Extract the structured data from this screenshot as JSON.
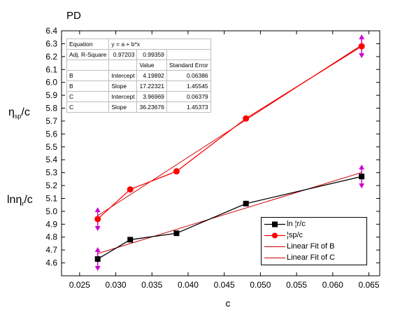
{
  "chart_data": {
    "type": "scatter",
    "title": "PD",
    "xlabel": "c",
    "ylabel_top": "η",
    "ylabel_top_sub": "sp",
    "ylabel_top_tail": "/c",
    "ylabel_bottom": "lnη",
    "ylabel_bottom_sub": "r",
    "ylabel_bottom_tail": "/c",
    "xlim": [
      0.0225,
      0.0665
    ],
    "ylim": [
      4.5,
      6.4
    ],
    "x_ticks": [
      "0.025",
      "0.030",
      "0.035",
      "0.040",
      "0.045",
      "0.050",
      "0.055",
      "0.060",
      "0.065"
    ],
    "y_ticks": [
      "4.6",
      "4.7",
      "4.8",
      "4.9",
      "5.0",
      "5.1",
      "5.2",
      "5.3",
      "5.4",
      "5.5",
      "5.6",
      "5.7",
      "5.8",
      "5.9",
      "6.0",
      "6.1",
      "6.2",
      "6.3",
      "6.4"
    ],
    "series": [
      {
        "name": "ln ¦r/c",
        "marker": "square",
        "color": "#000000",
        "x": [
          0.0275,
          0.032,
          0.0384,
          0.048,
          0.064
        ],
        "y": [
          4.63,
          4.78,
          4.83,
          5.06,
          5.27
        ]
      },
      {
        "name": "¦sp/c",
        "marker": "circle",
        "color": "#ff0000",
        "x": [
          0.0275,
          0.032,
          0.0384,
          0.048,
          0.064
        ],
        "y": [
          4.94,
          5.17,
          5.31,
          5.72,
          6.28
        ]
      }
    ],
    "fits": [
      {
        "name": "Linear Fit of B",
        "color": "#cc0000",
        "intercept": 4.19892,
        "slope": 17.22321,
        "x_range": [
          0.0275,
          0.064
        ]
      },
      {
        "name": "Linear Fit of C",
        "color": "#cc0000",
        "intercept": 3.96969,
        "slope": 36.23676,
        "x_range": [
          0.0275,
          0.064
        ]
      }
    ],
    "error_markers": {
      "color": "#d000d0",
      "points": [
        {
          "x": 0.0275,
          "y": 4.94
        },
        {
          "x": 0.0275,
          "y": 4.63
        },
        {
          "x": 0.064,
          "y": 6.28
        },
        {
          "x": 0.064,
          "y": 5.27
        }
      ]
    },
    "legend_placement": "bottom-right",
    "grid": false,
    "stats_table": {
      "equation_label": "Equation",
      "equation_value": "y = a + b*x",
      "adj_r_label": "Adj. R-Square",
      "adj_r_b": "0.97203",
      "adj_r_c": "0.99359",
      "value_header": "Value",
      "se_header": "Standard Error",
      "rows": [
        {
          "series": "B",
          "param": "Intercept",
          "value": "4.19892",
          "se": "0.06386"
        },
        {
          "series": "B",
          "param": "Slope",
          "value": "17.22321",
          "se": "1.45545"
        },
        {
          "series": "C",
          "param": "Intercept",
          "value": "3.96969",
          "se": "0.06379"
        },
        {
          "series": "C",
          "param": "Slope",
          "value": "36.23676",
          "se": "1.45373"
        }
      ]
    }
  }
}
